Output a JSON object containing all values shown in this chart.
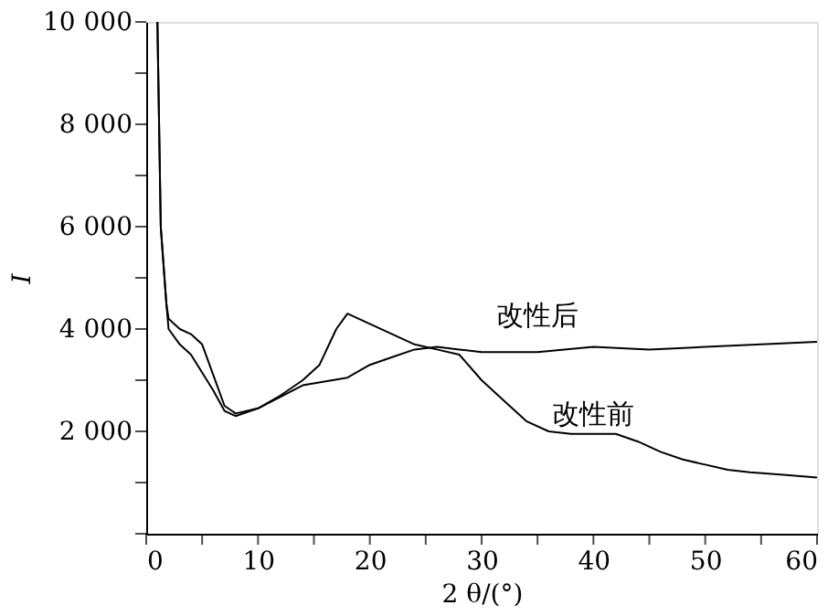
{
  "chart_data": {
    "type": "line",
    "xlabel": "2 θ/(°)",
    "ylabel": "I",
    "xlim": [
      0,
      60
    ],
    "ylim": [
      0,
      10000
    ],
    "xticks": [
      0,
      {
        "value": 5,
        "label": null
      },
      10,
      {
        "value": 15,
        "label": null
      },
      20,
      {
        "value": 25,
        "label": null
      },
      30,
      {
        "value": 35,
        "label": null
      },
      40,
      {
        "value": 45,
        "label": null
      },
      50,
      {
        "value": 55,
        "label": null
      },
      60
    ],
    "yticks": [
      {
        "value": 0,
        "label": null
      },
      {
        "value": 1000,
        "label": null
      },
      {
        "value": 2000,
        "label": "2 000"
      },
      {
        "value": 3000,
        "label": null
      },
      {
        "value": 4000,
        "label": "4 000"
      },
      {
        "value": 5000,
        "label": null
      },
      {
        "value": 6000,
        "label": "6 000"
      },
      {
        "value": 7000,
        "label": null
      },
      {
        "value": 8000,
        "label": "8 000"
      },
      {
        "value": 9000,
        "label": null
      },
      {
        "value": 10000,
        "label": "10 000"
      }
    ],
    "grid": false,
    "marker": "none",
    "line_style": "solid",
    "series": [
      {
        "name": "改性前",
        "color": "#000000",
        "x": [
          1,
          1.3,
          1.8,
          2,
          3,
          4,
          5,
          6,
          7,
          8,
          10,
          12,
          14,
          15.5,
          17,
          18,
          20,
          22,
          24,
          26,
          28,
          30,
          32,
          34,
          36,
          38,
          40,
          42,
          44,
          46,
          48,
          50,
          52,
          54,
          57,
          60
        ],
        "values": [
          10000,
          6000,
          4500,
          4200,
          4000,
          3900,
          3700,
          3100,
          2500,
          2350,
          2450,
          2700,
          3000,
          3300,
          4000,
          4300,
          4100,
          3900,
          3700,
          3600,
          3500,
          3000,
          2600,
          2200,
          2000,
          1950,
          1950,
          1950,
          1800,
          1600,
          1450,
          1350,
          1250,
          1200,
          1150,
          1100
        ]
      },
      {
        "name": "改性后",
        "color": "#000000",
        "x": [
          1,
          1.3,
          1.8,
          2,
          3,
          4,
          6,
          7,
          8,
          10,
          14,
          18,
          20,
          22,
          24,
          26,
          28,
          30,
          35,
          40,
          45,
          50,
          55,
          60
        ],
        "values": [
          10000,
          6000,
          4500,
          4000,
          3700,
          3500,
          2800,
          2400,
          2300,
          2450,
          2900,
          3050,
          3300,
          3450,
          3600,
          3650,
          3600,
          3550,
          3550,
          3650,
          3600,
          3650,
          3700,
          3750
        ]
      }
    ]
  }
}
